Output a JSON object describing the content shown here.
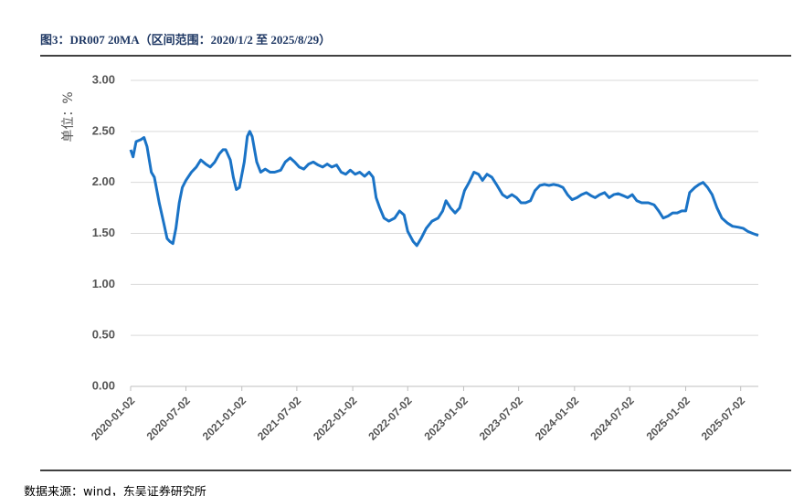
{
  "chart_data": {
    "type": "line",
    "title": "图3：DR007 20MA（区间范围：2020/1/2 至 2025/8/29）",
    "y_label": "单位：%",
    "source": "数据来源：wind，东吴证券研究所",
    "x": [
      "2020-01-02",
      "2020-01-10",
      "2020-01-20",
      "2020-02-05",
      "2020-02-15",
      "2020-02-25",
      "2020-03-10",
      "2020-03-20",
      "2020-04-05",
      "2020-04-20",
      "2020-05-01",
      "2020-05-10",
      "2020-05-20",
      "2020-05-30",
      "2020-06-10",
      "2020-06-20",
      "2020-07-02",
      "2020-07-20",
      "2020-08-05",
      "2020-08-20",
      "2020-09-05",
      "2020-09-20",
      "2020-10-05",
      "2020-10-20",
      "2020-11-01",
      "2020-11-10",
      "2020-11-25",
      "2020-12-05",
      "2020-12-15",
      "2020-12-25",
      "2021-01-10",
      "2021-01-20",
      "2021-01-28",
      "2021-02-05",
      "2021-02-20",
      "2021-03-05",
      "2021-03-20",
      "2021-04-05",
      "2021-04-20",
      "2021-05-10",
      "2021-05-25",
      "2021-06-10",
      "2021-06-25",
      "2021-07-10",
      "2021-07-25",
      "2021-08-10",
      "2021-08-25",
      "2021-09-10",
      "2021-09-25",
      "2021-10-10",
      "2021-10-25",
      "2021-11-10",
      "2021-11-25",
      "2021-12-10",
      "2021-12-25",
      "2022-01-10",
      "2022-01-25",
      "2022-02-10",
      "2022-02-25",
      "2022-03-10",
      "2022-03-20",
      "2022-04-01",
      "2022-04-15",
      "2022-05-01",
      "2022-05-20",
      "2022-06-05",
      "2022-06-20",
      "2022-07-02",
      "2022-07-20",
      "2022-08-01",
      "2022-08-15",
      "2022-09-01",
      "2022-09-20",
      "2022-10-10",
      "2022-10-25",
      "2022-11-05",
      "2022-11-20",
      "2022-12-05",
      "2022-12-20",
      "2023-01-05",
      "2023-01-20",
      "2023-02-05",
      "2023-02-20",
      "2023-03-05",
      "2023-03-20",
      "2023-04-05",
      "2023-04-20",
      "2023-05-10",
      "2023-05-25",
      "2023-06-10",
      "2023-06-25",
      "2023-07-10",
      "2023-07-25",
      "2023-08-10",
      "2023-08-25",
      "2023-09-10",
      "2023-09-25",
      "2023-10-10",
      "2023-10-25",
      "2023-11-10",
      "2023-11-25",
      "2023-12-10",
      "2023-12-25",
      "2024-01-10",
      "2024-01-25",
      "2024-02-10",
      "2024-02-25",
      "2024-03-10",
      "2024-03-25",
      "2024-04-10",
      "2024-04-25",
      "2024-05-10",
      "2024-05-25",
      "2024-06-10",
      "2024-06-25",
      "2024-07-10",
      "2024-07-25",
      "2024-08-10",
      "2024-09-01",
      "2024-09-20",
      "2024-10-05",
      "2024-10-20",
      "2024-11-05",
      "2024-11-20",
      "2024-12-05",
      "2024-12-20",
      "2025-01-02",
      "2025-01-15",
      "2025-02-01",
      "2025-02-15",
      "2025-02-28",
      "2025-03-15",
      "2025-03-30",
      "2025-04-15",
      "2025-05-01",
      "2025-05-20",
      "2025-06-05",
      "2025-06-25",
      "2025-07-10",
      "2025-07-25",
      "2025-08-10",
      "2025-08-29"
    ],
    "series": [
      {
        "name": "DR007 20MA",
        "color": "#1a73c6",
        "values": [
          2.32,
          2.25,
          2.4,
          2.42,
          2.44,
          2.35,
          2.1,
          2.05,
          1.8,
          1.6,
          1.45,
          1.42,
          1.4,
          1.55,
          1.8,
          1.95,
          2.02,
          2.1,
          2.15,
          2.22,
          2.18,
          2.15,
          2.2,
          2.28,
          2.32,
          2.32,
          2.22,
          2.05,
          1.93,
          1.95,
          2.2,
          2.45,
          2.5,
          2.45,
          2.2,
          2.1,
          2.13,
          2.1,
          2.1,
          2.12,
          2.2,
          2.24,
          2.2,
          2.15,
          2.13,
          2.18,
          2.2,
          2.17,
          2.15,
          2.18,
          2.15,
          2.17,
          2.1,
          2.08,
          2.12,
          2.08,
          2.1,
          2.06,
          2.1,
          2.05,
          1.85,
          1.75,
          1.65,
          1.62,
          1.65,
          1.72,
          1.68,
          1.52,
          1.42,
          1.38,
          1.45,
          1.55,
          1.62,
          1.65,
          1.72,
          1.82,
          1.75,
          1.7,
          1.75,
          1.92,
          2.0,
          2.1,
          2.08,
          2.02,
          2.08,
          2.05,
          1.98,
          1.88,
          1.85,
          1.88,
          1.85,
          1.8,
          1.8,
          1.82,
          1.92,
          1.97,
          1.98,
          1.97,
          1.98,
          1.97,
          1.95,
          1.88,
          1.83,
          1.85,
          1.88,
          1.9,
          1.87,
          1.85,
          1.88,
          1.9,
          1.85,
          1.88,
          1.89,
          1.87,
          1.85,
          1.88,
          1.82,
          1.8,
          1.8,
          1.78,
          1.72,
          1.65,
          1.67,
          1.7,
          1.7,
          1.72,
          1.72,
          1.9,
          1.95,
          1.98,
          2.0,
          1.95,
          1.88,
          1.75,
          1.65,
          1.6,
          1.57,
          1.56,
          1.55,
          1.52,
          1.5,
          1.48
        ]
      }
    ],
    "xlim": [
      "2020-01-02",
      "2025-08-29"
    ],
    "xticks": [
      "2020-01-02",
      "2020-07-02",
      "2021-01-02",
      "2021-07-02",
      "2022-01-02",
      "2022-07-02",
      "2023-01-02",
      "2023-07-02",
      "2024-01-02",
      "2024-07-02",
      "2025-01-02",
      "2025-07-02"
    ],
    "ylim": [
      0,
      3
    ],
    "yticks": [
      {
        "value": 0,
        "label": "0.00"
      },
      {
        "value": 0.5,
        "label": "0.50"
      },
      {
        "value": 1,
        "label": "1.00"
      },
      {
        "value": 1.5,
        "label": "1.50"
      },
      {
        "value": 2,
        "label": "2.00"
      },
      {
        "value": 2.5,
        "label": "2.50"
      },
      {
        "value": 3,
        "label": "3.00"
      }
    ],
    "grid": true
  }
}
